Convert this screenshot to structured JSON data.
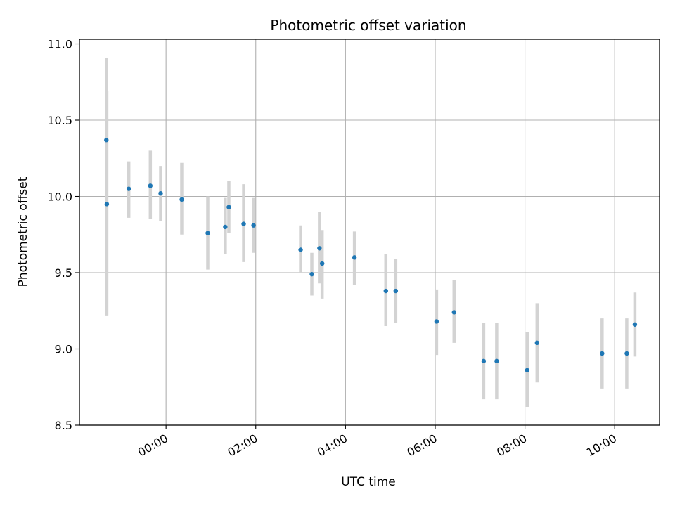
{
  "chart_data": {
    "type": "scatter",
    "title": "Photometric offset variation",
    "xlabel": "UTC time",
    "ylabel": "Photometric offset",
    "x_tick_labels": [
      "00:00",
      "02:00",
      "04:00",
      "06:00",
      "08:00",
      "10:00"
    ],
    "x_tick_hours": [
      0,
      2,
      4,
      6,
      8,
      10
    ],
    "y_ticks": [
      8.5,
      9.0,
      9.5,
      10.0,
      10.5,
      11.0
    ],
    "y_tick_labels": [
      "8.5",
      "9.0",
      "9.5",
      "10.0",
      "10.5",
      "11.0"
    ],
    "xlim_hours": [
      -1.93,
      11.0
    ],
    "ylim": [
      8.5,
      11.03
    ],
    "grid": true,
    "colors": {
      "point": "#1f77b4",
      "errorbar": "#d3d3d3",
      "grid": "#b0b0b0"
    },
    "points": [
      {
        "t": -1.33,
        "y": 10.37,
        "lo": 9.22,
        "hi": 10.91
      },
      {
        "t": -1.32,
        "y": 9.95,
        "lo": 9.22,
        "hi": 10.69
      },
      {
        "t": -0.83,
        "y": 10.05,
        "lo": 9.86,
        "hi": 10.23
      },
      {
        "t": -0.35,
        "y": 10.07,
        "lo": 9.85,
        "hi": 10.3
      },
      {
        "t": -0.12,
        "y": 10.02,
        "lo": 9.84,
        "hi": 10.2
      },
      {
        "t": 0.35,
        "y": 9.98,
        "lo": 9.75,
        "hi": 10.22
      },
      {
        "t": 0.93,
        "y": 9.76,
        "lo": 9.52,
        "hi": 10.0
      },
      {
        "t": 1.32,
        "y": 9.8,
        "lo": 9.62,
        "hi": 9.99
      },
      {
        "t": 1.4,
        "y": 9.93,
        "lo": 9.76,
        "hi": 10.1
      },
      {
        "t": 1.73,
        "y": 9.82,
        "lo": 9.57,
        "hi": 10.08
      },
      {
        "t": 1.95,
        "y": 9.81,
        "lo": 9.63,
        "hi": 9.99
      },
      {
        "t": 3.0,
        "y": 9.65,
        "lo": 9.5,
        "hi": 9.81
      },
      {
        "t": 3.25,
        "y": 9.49,
        "lo": 9.35,
        "hi": 9.63
      },
      {
        "t": 3.42,
        "y": 9.66,
        "lo": 9.43,
        "hi": 9.9
      },
      {
        "t": 3.48,
        "y": 9.56,
        "lo": 9.33,
        "hi": 9.78
      },
      {
        "t": 4.2,
        "y": 9.6,
        "lo": 9.42,
        "hi": 9.77
      },
      {
        "t": 4.9,
        "y": 9.38,
        "lo": 9.15,
        "hi": 9.62
      },
      {
        "t": 5.12,
        "y": 9.38,
        "lo": 9.17,
        "hi": 9.59
      },
      {
        "t": 6.03,
        "y": 9.18,
        "lo": 8.96,
        "hi": 9.39
      },
      {
        "t": 6.42,
        "y": 9.24,
        "lo": 9.04,
        "hi": 9.45
      },
      {
        "t": 7.08,
        "y": 8.92,
        "lo": 8.67,
        "hi": 9.17
      },
      {
        "t": 7.37,
        "y": 8.92,
        "lo": 8.67,
        "hi": 9.17
      },
      {
        "t": 8.05,
        "y": 8.86,
        "lo": 8.62,
        "hi": 9.11
      },
      {
        "t": 8.27,
        "y": 9.04,
        "lo": 8.78,
        "hi": 9.3
      },
      {
        "t": 9.72,
        "y": 8.97,
        "lo": 8.74,
        "hi": 9.2
      },
      {
        "t": 10.27,
        "y": 8.97,
        "lo": 8.74,
        "hi": 9.2
      },
      {
        "t": 10.45,
        "y": 9.16,
        "lo": 8.95,
        "hi": 9.37
      }
    ]
  }
}
